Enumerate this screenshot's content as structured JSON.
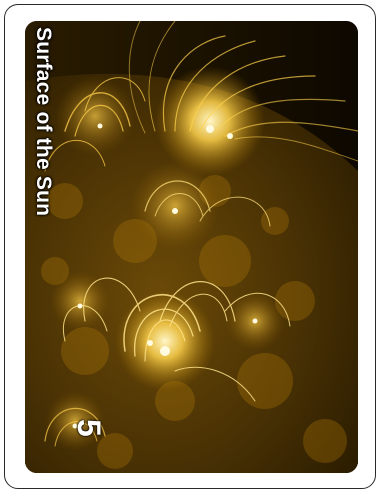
{
  "card": {
    "title": "Surface of the Sun",
    "value": "5",
    "art": "sun-surface-image"
  },
  "colors": {
    "border": "#2a2a2a",
    "background": "#ffffff",
    "art_dark": "#1c1300",
    "art_glow": "#ffd34d",
    "text": "#ffffff"
  }
}
